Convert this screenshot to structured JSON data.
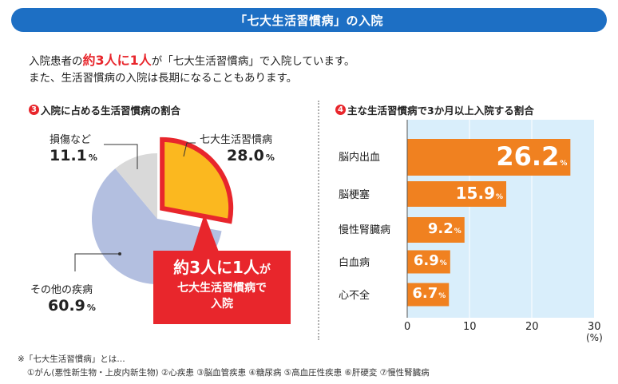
{
  "header": {
    "title": "「七大生活習慣病」の入院"
  },
  "lead": {
    "line1_pre": "入院患者の",
    "line1_em": "約3人に1人",
    "line1_post": "が「七大生活習慣病」で入院しています。",
    "line2": "また、生活習慣病の入院は長期になることもあります。"
  },
  "colors": {
    "banner": "#1d6fc4",
    "accent_red": "#e8262c",
    "pie_main": "#fbb81f",
    "pie_other": "#b3bfe0",
    "pie_injury": "#d9d9d9",
    "bar": "#f08120",
    "bar_bg": "#d9eefb"
  },
  "chart_data": [
    {
      "type": "pie",
      "badge": "3",
      "title": "入院に占める生活習慣病の割合",
      "slices": [
        {
          "name": "七大生活習慣病",
          "value": 28.0,
          "display": "28.0"
        },
        {
          "name": "その他の疾病",
          "value": 60.9,
          "display": "60.9"
        },
        {
          "name": "損傷など",
          "value": 11.1,
          "display": "11.1"
        }
      ],
      "unit": "%",
      "callout": {
        "line1_em": "約3人に1人",
        "line1_small": "が",
        "line2": "七大生活習慣病で",
        "line3": "入院"
      }
    },
    {
      "type": "bar",
      "badge": "4",
      "title": "主な生活習慣病で3か月以上入院する割合",
      "orientation": "horizontal",
      "categories": [
        "脳内出血",
        "脳梗塞",
        "慢性腎臓病",
        "白血病",
        "心不全"
      ],
      "values": [
        26.2,
        15.9,
        9.2,
        6.9,
        6.7
      ],
      "value_labels": [
        "26.2",
        "15.9",
        "9.2",
        "6.9",
        "6.7"
      ],
      "unit": "%",
      "xlim": [
        0,
        30
      ],
      "xticks": [
        "0",
        "10",
        "20",
        "30"
      ],
      "xunit": "(%)"
    }
  ],
  "notes": {
    "line1": "※「七大生活習慣病」とは…",
    "line2": "①がん(悪性新生物・上皮内新生物) ②心疾患 ③脳血管疾患 ④糖尿病 ⑤高血圧性疾患 ⑥肝硬変 ⑦慢性腎臓病"
  }
}
